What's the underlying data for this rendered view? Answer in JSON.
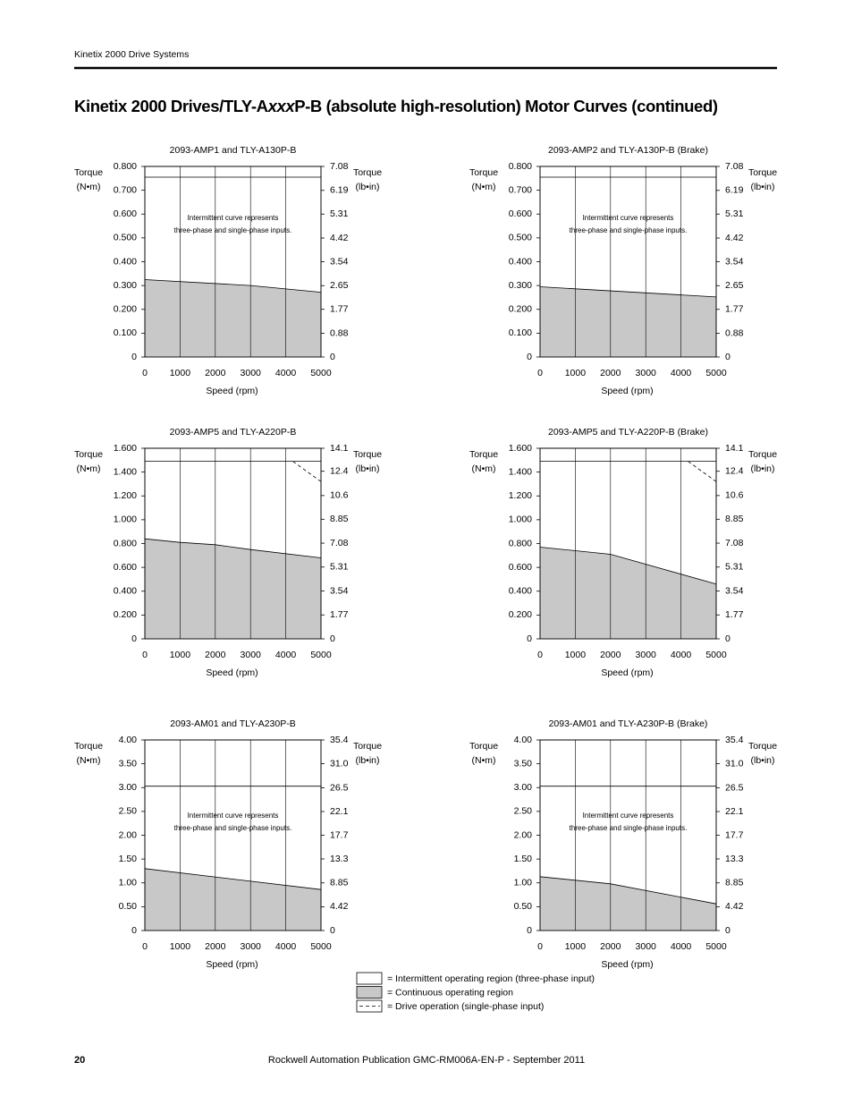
{
  "header": "Kinetix 2000 Drive Systems",
  "title": [
    "Kinetix 2000 Drives/TLY-A",
    "xxx",
    "P-B (absolute high-resolution) Motor Curves (continued)"
  ],
  "chart_data": [
    {
      "type": "area",
      "title": "2093-AMP1 and TLY-A130P-B",
      "y_label": [
        "Torque",
        "(N•m)"
      ],
      "y2_label": [
        "Torque",
        "(lb•in)"
      ],
      "x_label": "Speed (rpm)",
      "xlim": [
        0,
        5000
      ],
      "xticks": [
        0,
        1000,
        2000,
        3000,
        4000,
        5000
      ],
      "ylim": [
        0,
        0.8
      ],
      "yticks": [
        0,
        {
          "value": 0.1,
          "label": "0.100"
        },
        {
          "value": 0.2,
          "label": "0.200"
        },
        {
          "value": 0.3,
          "label": "0.300"
        },
        {
          "value": 0.4,
          "label": "0.400"
        },
        {
          "value": 0.5,
          "label": "0.500"
        },
        {
          "value": 0.6,
          "label": "0.600"
        },
        {
          "value": 0.7,
          "label": "0.700"
        },
        {
          "value": 0.8,
          "label": "0.800"
        }
      ],
      "y2lim": [
        0,
        7.08
      ],
      "y2ticks": [
        0,
        0.88,
        1.77,
        2.65,
        3.54,
        4.42,
        5.31,
        6.19,
        7.08
      ],
      "grid": "x",
      "annotation": [
        "Intermittent curve represents",
        "three-phase and single-phase inputs."
      ],
      "series": [
        {
          "style": "fill",
          "color": "#c8c8c8",
          "x": [
            0,
            3000,
            5000
          ],
          "values": [
            0.325,
            0.3,
            0.272
          ]
        },
        {
          "style": "line",
          "color": "#000000",
          "x": [
            0,
            5000
          ],
          "values": [
            0.755,
            0.755
          ]
        }
      ]
    },
    {
      "type": "area",
      "title": "2093-AMP2 and TLY-A130P-B (Brake)",
      "y_label": [
        "Torque",
        "(N•m)"
      ],
      "y2_label": [
        "Torque",
        "(lb•in)"
      ],
      "x_label": "Speed (rpm)",
      "xlim": [
        0,
        5000
      ],
      "xticks": [
        0,
        1000,
        2000,
        3000,
        4000,
        5000
      ],
      "ylim": [
        0,
        0.8
      ],
      "yticks": [
        0,
        {
          "value": 0.1,
          "label": "0.100"
        },
        {
          "value": 0.2,
          "label": "0.200"
        },
        {
          "value": 0.3,
          "label": "0.300"
        },
        {
          "value": 0.4,
          "label": "0.400"
        },
        {
          "value": 0.5,
          "label": "0.500"
        },
        {
          "value": 0.6,
          "label": "0.600"
        },
        {
          "value": 0.7,
          "label": "0.700"
        },
        {
          "value": 0.8,
          "label": "0.800"
        }
      ],
      "y2lim": [
        0,
        7.08
      ],
      "y2ticks": [
        0,
        0.88,
        1.77,
        2.65,
        3.54,
        4.42,
        5.31,
        6.19,
        7.08
      ],
      "grid": "x",
      "annotation": [
        "Intermittent curve represents",
        "three-phase and single-phase inputs."
      ],
      "series": [
        {
          "style": "fill",
          "color": "#c8c8c8",
          "x": [
            0,
            5000
          ],
          "values": [
            0.295,
            0.252
          ]
        },
        {
          "style": "line",
          "color": "#000000",
          "x": [
            0,
            5000
          ],
          "values": [
            0.755,
            0.755
          ]
        }
      ]
    },
    {
      "type": "area",
      "title": "2093-AMP5 and TLY-A220P-B",
      "y_label": [
        "Torque",
        "(N•m)"
      ],
      "y2_label": [
        "Torque",
        "(lb•in)"
      ],
      "x_label": "Speed (rpm)",
      "xlim": [
        0,
        5000
      ],
      "xticks": [
        0,
        1000,
        2000,
        3000,
        4000,
        5000
      ],
      "ylim": [
        0,
        1.6
      ],
      "yticks": [
        0,
        {
          "value": 0.2,
          "label": "0.200"
        },
        {
          "value": 0.4,
          "label": "0.400"
        },
        {
          "value": 0.6,
          "label": "0.600"
        },
        {
          "value": 0.8,
          "label": "0.800"
        },
        {
          "value": 1.0,
          "label": "1.000"
        },
        {
          "value": 1.2,
          "label": "1.200"
        },
        {
          "value": 1.4,
          "label": "1.400"
        },
        {
          "value": 1.6,
          "label": "1.600"
        }
      ],
      "y2lim": [
        0,
        14.1
      ],
      "y2ticks": [
        0,
        1.77,
        3.54,
        5.31,
        7.08,
        8.85,
        10.6,
        12.4,
        14.1
      ],
      "grid": "x",
      "series": [
        {
          "style": "fill",
          "color": "#c8c8c8",
          "x": [
            0,
            1000,
            2000,
            3000,
            5000
          ],
          "values": [
            0.84,
            0.81,
            0.79,
            0.75,
            0.68
          ]
        },
        {
          "style": "line",
          "color": "#000000",
          "x": [
            0,
            5000
          ],
          "values": [
            1.49,
            1.49
          ]
        },
        {
          "style": "dashed",
          "color": "#000000",
          "x": [
            4200,
            5000
          ],
          "values": [
            1.49,
            1.32
          ]
        }
      ]
    },
    {
      "type": "area",
      "title": "2093-AMP5 and TLY-A220P-B (Brake)",
      "y_label": [
        "Torque",
        "(N•m)"
      ],
      "y2_label": [
        "Torque",
        "(lb•in)"
      ],
      "x_label": "Speed (rpm)",
      "xlim": [
        0,
        5000
      ],
      "xticks": [
        0,
        1000,
        2000,
        3000,
        4000,
        5000
      ],
      "ylim": [
        0,
        1.6
      ],
      "yticks": [
        0,
        {
          "value": 0.2,
          "label": "0.200"
        },
        {
          "value": 0.4,
          "label": "0.400"
        },
        {
          "value": 0.6,
          "label": "0.600"
        },
        {
          "value": 0.8,
          "label": "0.800"
        },
        {
          "value": 1.0,
          "label": "1.000"
        },
        {
          "value": 1.2,
          "label": "1.200"
        },
        {
          "value": 1.4,
          "label": "1.400"
        },
        {
          "value": 1.6,
          "label": "1.600"
        }
      ],
      "y2lim": [
        0,
        14.1
      ],
      "y2ticks": [
        0,
        1.77,
        3.54,
        5.31,
        7.08,
        8.85,
        10.6,
        12.4,
        14.1
      ],
      "grid": "x",
      "series": [
        {
          "style": "fill",
          "color": "#c8c8c8",
          "x": [
            0,
            2000,
            5000
          ],
          "values": [
            0.77,
            0.71,
            0.46
          ]
        },
        {
          "style": "line",
          "color": "#000000",
          "x": [
            0,
            5000
          ],
          "values": [
            1.49,
            1.49
          ]
        },
        {
          "style": "dashed",
          "color": "#000000",
          "x": [
            4200,
            5000
          ],
          "values": [
            1.49,
            1.32
          ]
        }
      ]
    },
    {
      "type": "area",
      "title": "2093-AM01 and TLY-A230P-B",
      "y_label": [
        "Torque",
        "(N•m)"
      ],
      "y2_label": [
        "Torque",
        "(lb•in)"
      ],
      "x_label": "Speed (rpm)",
      "xlim": [
        0,
        5000
      ],
      "xticks": [
        0,
        1000,
        2000,
        3000,
        4000,
        5000
      ],
      "ylim": [
        0,
        4
      ],
      "yticks": [
        0,
        {
          "value": 0.5,
          "label": "0.50"
        },
        {
          "value": 1,
          "label": "1.00"
        },
        {
          "value": 1.5,
          "label": "1.50"
        },
        {
          "value": 2,
          "label": "2.00"
        },
        {
          "value": 2.5,
          "label": "2.50"
        },
        {
          "value": 3,
          "label": "3.00"
        },
        {
          "value": 3.5,
          "label": "3.50"
        },
        {
          "value": 4,
          "label": "4.00"
        }
      ],
      "y2lim": [
        0,
        35.4
      ],
      "y2ticks": [
        0,
        4.42,
        8.85,
        13.3,
        17.7,
        22.1,
        26.5,
        {
          "value": 31,
          "label": "31.0"
        },
        35.4
      ],
      "grid": "x",
      "annotation": [
        "Intermittent curve represents",
        "three-phase and single-phase inputs."
      ],
      "series": [
        {
          "style": "fill",
          "color": "#c8c8c8",
          "x": [
            0,
            5000
          ],
          "values": [
            1.3,
            0.86
          ]
        },
        {
          "style": "line",
          "color": "#000000",
          "x": [
            0,
            5000
          ],
          "values": [
            3.03,
            3.03
          ]
        }
      ]
    },
    {
      "type": "area",
      "title": "2093-AM01 and TLY-A230P-B (Brake)",
      "y_label": [
        "Torque",
        "(N•m)"
      ],
      "y2_label": [
        "Torque",
        "(lb•in)"
      ],
      "x_label": "Speed (rpm)",
      "xlim": [
        0,
        5000
      ],
      "xticks": [
        0,
        1000,
        2000,
        3000,
        4000,
        5000
      ],
      "ylim": [
        0,
        4
      ],
      "yticks": [
        0,
        {
          "value": 0.5,
          "label": "0.50"
        },
        {
          "value": 1,
          "label": "1.00"
        },
        {
          "value": 1.5,
          "label": "1.50"
        },
        {
          "value": 2,
          "label": "2.00"
        },
        {
          "value": 2.5,
          "label": "2.50"
        },
        {
          "value": 3,
          "label": "3.00"
        },
        {
          "value": 3.5,
          "label": "3.50"
        },
        {
          "value": 4,
          "label": "4.00"
        }
      ],
      "y2lim": [
        0,
        35.4
      ],
      "y2ticks": [
        0,
        4.42,
        8.85,
        13.3,
        17.7,
        22.1,
        26.5,
        {
          "value": 31,
          "label": "31.0"
        },
        35.4
      ],
      "grid": "x",
      "annotation": [
        "Intermittent curve represents",
        "three-phase and single-phase inputs."
      ],
      "series": [
        {
          "style": "fill",
          "color": "#c8c8c8",
          "x": [
            0,
            2000,
            5000
          ],
          "values": [
            1.13,
            0.98,
            0.56
          ]
        },
        {
          "style": "line",
          "color": "#000000",
          "x": [
            0,
            5000
          ],
          "values": [
            3.03,
            3.03
          ]
        }
      ]
    }
  ],
  "legend": [
    {
      "style": "line",
      "text": "= Intermittent operating region (three-phase input)"
    },
    {
      "style": "fill",
      "text": "= Continuous operating region"
    },
    {
      "style": "dashed",
      "text": "= Drive operation (single-phase input)"
    }
  ],
  "footer": {
    "page": "20",
    "publication": "Rockwell Automation Publication GMC-RM006A-EN-P - September 2011"
  }
}
